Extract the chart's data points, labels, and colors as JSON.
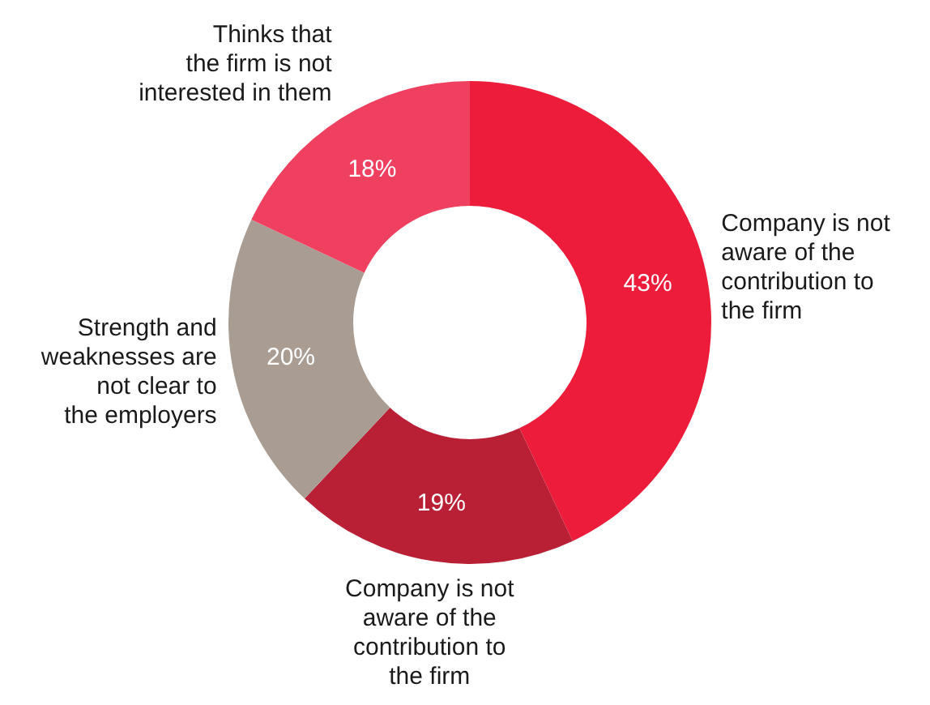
{
  "chart_data": {
    "type": "donut",
    "categories": [
      "Company is not\naware of the\ncontribution to\nthe firm",
      "Company is not\naware of the\ncontribution to\nthe firm",
      "Strength and\nweaknesses are\nnot clear to\nthe employers",
      "Thinks that\nthe firm is not\ninterested in them"
    ],
    "values": [
      43,
      19,
      20,
      18
    ],
    "colors": [
      "#ed1c3a",
      "#b92036",
      "#a99d93",
      "#ef4060"
    ],
    "value_labels": [
      "43%",
      "19%",
      "20%",
      "18%"
    ]
  }
}
